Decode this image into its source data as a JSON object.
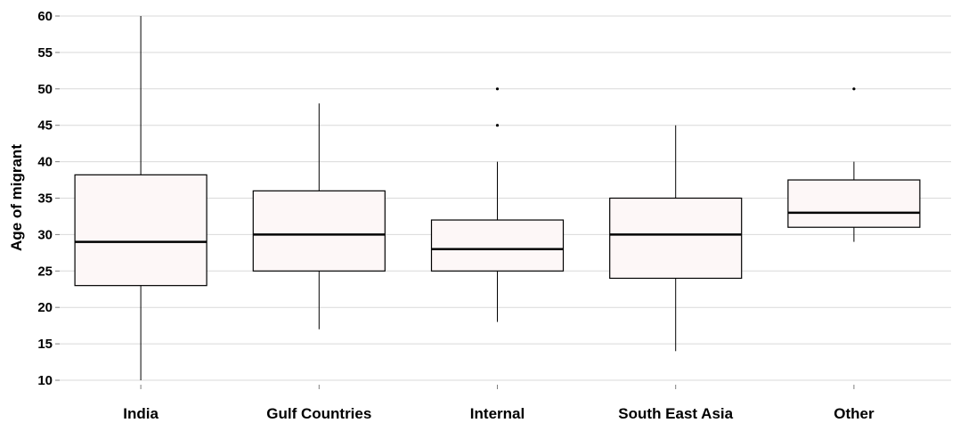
{
  "chart_data": {
    "type": "boxplot",
    "title": "",
    "xlabel": "",
    "ylabel": "Age of migrant",
    "ylim": [
      9,
      60.5
    ],
    "yticks": [
      10,
      15,
      20,
      25,
      30,
      35,
      40,
      45,
      50,
      55,
      60
    ],
    "grid": "horizontal",
    "categories": [
      "India",
      "Gulf Countries",
      "Internal",
      "South East Asia",
      "Other"
    ],
    "boxes": [
      {
        "category": "India",
        "whisker_low": 10,
        "q1": 23,
        "median": 29,
        "q3": 38.2,
        "whisker_high": 60,
        "outliers": []
      },
      {
        "category": "Gulf Countries",
        "whisker_low": 17,
        "q1": 25,
        "median": 30,
        "q3": 36,
        "whisker_high": 48,
        "outliers": []
      },
      {
        "category": "Internal",
        "whisker_low": 18,
        "q1": 25,
        "median": 28,
        "q3": 32,
        "whisker_high": 40,
        "outliers": [
          45,
          50
        ]
      },
      {
        "category": "South East Asia",
        "whisker_low": 14,
        "q1": 24,
        "median": 30,
        "q3": 35,
        "whisker_high": 45,
        "outliers": []
      },
      {
        "category": "Other",
        "whisker_low": 29,
        "q1": 31,
        "median": 33,
        "q3": 37.5,
        "whisker_high": 40,
        "outliers": [
          50
        ]
      }
    ],
    "colors": {
      "box_fill": "#fdf7f7",
      "box_stroke": "#000000",
      "grid": "#d9d9d9",
      "axis": "#7f7f7f"
    }
  }
}
